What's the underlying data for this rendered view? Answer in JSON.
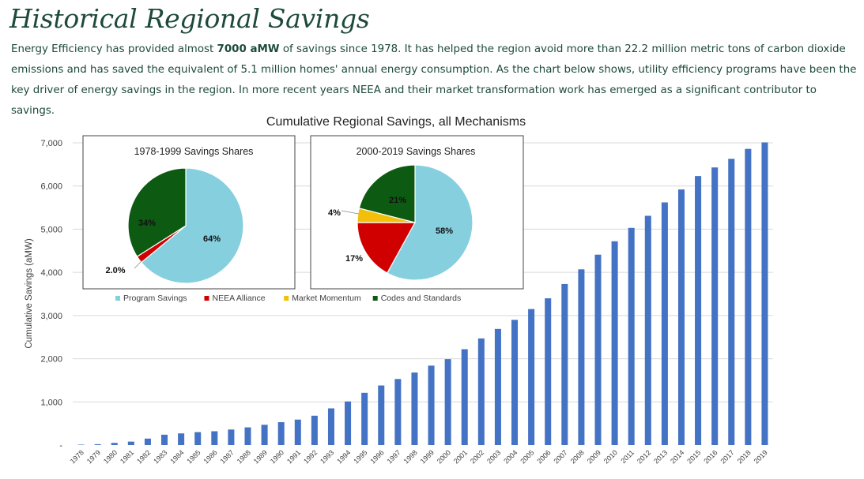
{
  "page": {
    "title": "Historical Regional Savings",
    "intro_before": "Energy Efficiency has provided almost ",
    "intro_bold": "7000 aMW",
    "intro_after": " of savings since 1978. It has helped the region avoid more than 22.2 million metric tons of carbon dioxide emissions and has saved the equivalent of 5.1 million homes' annual energy consumption.  As the chart below shows, utility efficiency programs have been the key driver of energy savings in the region.  In more recent years NEEA and their market transformation work has emerged as a significant contributor to savings."
  },
  "colors": {
    "bar": "#4472c4",
    "program": "#86cfdf",
    "neea": "#d00000",
    "momentum": "#f2c00a",
    "codes": "#0d5a12",
    "grid": "#d9d9d9",
    "text": "#404040"
  },
  "chart_data": [
    {
      "type": "bar",
      "title": "Cumulative Regional Savings, all Mechanisms",
      "xlabel": "",
      "ylabel": "Cumulative Savings (aMW)",
      "ylim": [
        0,
        7000
      ],
      "yticks": [
        0,
        1000,
        2000,
        3000,
        4000,
        5000,
        6000,
        7000
      ],
      "ytick_labels": [
        "-",
        "1,000",
        "2,000",
        "3,000",
        "4,000",
        "5,000",
        "6,000",
        "7,000"
      ],
      "grid": true,
      "categories": [
        "1978",
        "1979",
        "1980",
        "1981",
        "1982",
        "1983",
        "1984",
        "1985",
        "1986",
        "1987",
        "1988",
        "1989",
        "1990",
        "1991",
        "1992",
        "1993",
        "1994",
        "1995",
        "1996",
        "1997",
        "1998",
        "1999",
        "2000",
        "2001",
        "2002",
        "2003",
        "2004",
        "2005",
        "2006",
        "2007",
        "2008",
        "2009",
        "2010",
        "2011",
        "2012",
        "2013",
        "2014",
        "2015",
        "2016",
        "2017",
        "2018",
        "2019"
      ],
      "values": [
        10,
        20,
        50,
        80,
        150,
        240,
        270,
        300,
        320,
        360,
        410,
        470,
        530,
        590,
        680,
        850,
        1010,
        1210,
        1380,
        1530,
        1680,
        1840,
        1990,
        2220,
        2470,
        2690,
        2900,
        3150,
        3400,
        3730,
        4070,
        4410,
        4720,
        5030,
        5310,
        5620,
        5920,
        6230,
        6430,
        6630,
        6860,
        7010
      ]
    },
    {
      "type": "pie",
      "title": "1978-1999 Savings Shares",
      "labels": [
        "Program Savings",
        "NEEA Alliance",
        "Market Momentum",
        "Codes and Standards"
      ],
      "values": [
        64,
        2,
        0,
        34
      ],
      "data_labels": [
        "64%",
        "2.0%",
        "",
        "34%"
      ]
    },
    {
      "type": "pie",
      "title": "2000-2019 Savings Shares",
      "labels": [
        "Program Savings",
        "NEEA Alliance",
        "Market Momentum",
        "Codes and Standards"
      ],
      "values": [
        58,
        17,
        4,
        21
      ],
      "data_labels": [
        "58%",
        "17%",
        "4%",
        "21%"
      ]
    }
  ],
  "legend": [
    "Program Savings",
    "NEEA Alliance",
    "Market Momentum",
    "Codes and Standards"
  ]
}
